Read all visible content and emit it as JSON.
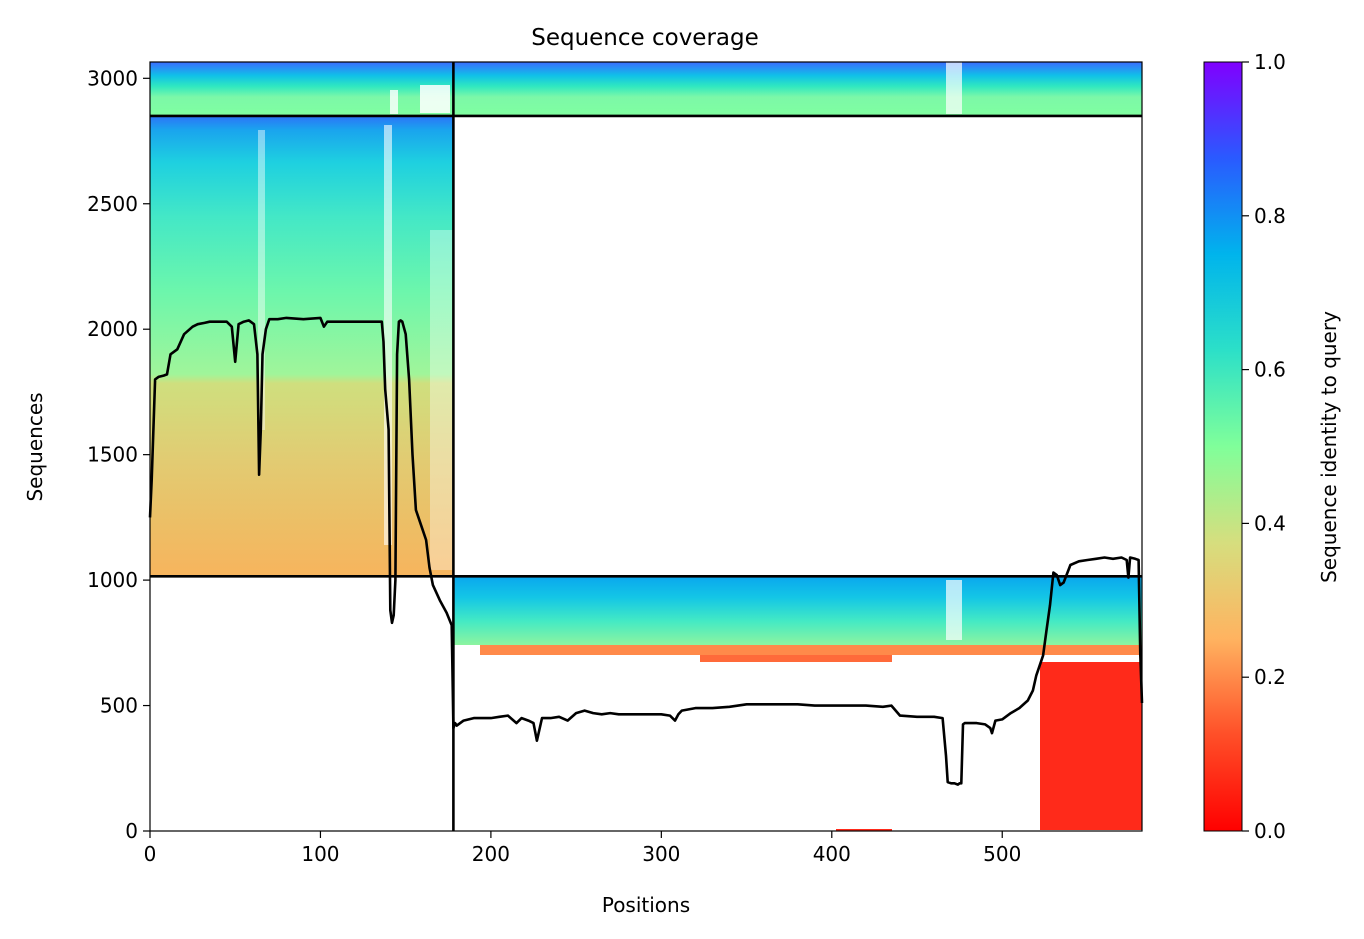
{
  "chart_data": {
    "type": "heatmap",
    "title": "Sequence coverage",
    "xlabel": "Positions",
    "ylabel": "Sequences",
    "xlim": [
      0,
      582
    ],
    "ylim": [
      0,
      3065
    ],
    "xticks": [
      0,
      100,
      200,
      300,
      400,
      500
    ],
    "yticks": [
      0,
      500,
      1000,
      1500,
      2000,
      2500,
      3000
    ],
    "grid": false,
    "colormap": "rainbow_r",
    "colorbar": {
      "label": "Sequence identity to query",
      "range": [
        0.0,
        1.0
      ],
      "ticks": [
        "0.0",
        "0.2",
        "0.4",
        "0.6",
        "0.8",
        "1.0"
      ]
    },
    "segment_boundaries": {
      "vertical_x": [
        178
      ],
      "horizontal_y": [
        1015,
        2850
      ]
    },
    "blocks": [
      {
        "name": "top-band",
        "x_range": [
          0,
          582
        ],
        "seq_range": [
          2850,
          3065
        ],
        "identity_range": [
          0.42,
          0.85
        ]
      },
      {
        "name": "upper-left",
        "x_range": [
          0,
          178
        ],
        "seq_range": [
          1015,
          2850
        ],
        "identity_range": [
          0.22,
          0.85
        ]
      },
      {
        "name": "lower-right",
        "x_range": [
          178,
          582
        ],
        "seq_range": [
          0,
          1015
        ],
        "identity_range": [
          0.05,
          0.78
        ]
      }
    ],
    "coverage_line": {
      "x": [
        0,
        1,
        3,
        5,
        8,
        10,
        12,
        14,
        16,
        20,
        25,
        28,
        32,
        35,
        40,
        45,
        48,
        50,
        52,
        55,
        58,
        61,
        63,
        64,
        65,
        66,
        68,
        70,
        75,
        80,
        90,
        100,
        102,
        104,
        106,
        110,
        120,
        130,
        136,
        137,
        138,
        140,
        141,
        142,
        143,
        144,
        145,
        146,
        147,
        148,
        150,
        152,
        154,
        156,
        158,
        160,
        162,
        164,
        166,
        170,
        174,
        177,
        178,
        179,
        180,
        184,
        190,
        200,
        205,
        210,
        215,
        218,
        222,
        225,
        227,
        230,
        235,
        240,
        245,
        250,
        255,
        260,
        265,
        270,
        275,
        280,
        290,
        300,
        305,
        308,
        310,
        312,
        320,
        330,
        340,
        350,
        360,
        370,
        380,
        390,
        400,
        410,
        420,
        430,
        435,
        440,
        450,
        460,
        465,
        467,
        468,
        470,
        472,
        474,
        475,
        476,
        477,
        478,
        480,
        485,
        490,
        493,
        494,
        496,
        500,
        505,
        510,
        515,
        518,
        520,
        522,
        524,
        526,
        528,
        530,
        532,
        534,
        536,
        540,
        545,
        550,
        555,
        560,
        565,
        570,
        573,
        574,
        575,
        578,
        580,
        581,
        582
      ],
      "y": [
        1250,
        1400,
        1800,
        1810,
        1815,
        1820,
        1900,
        1910,
        1920,
        1980,
        2010,
        2020,
        2025,
        2030,
        2030,
        2030,
        2010,
        1870,
        2020,
        2030,
        2035,
        2020,
        1900,
        1420,
        1600,
        1900,
        2000,
        2040,
        2040,
        2045,
        2040,
        2045,
        2010,
        2030,
        2030,
        2030,
        2030,
        2030,
        2030,
        1950,
        1760,
        1600,
        880,
        830,
        860,
        1000,
        1900,
        2030,
        2035,
        2030,
        1980,
        1800,
        1500,
        1280,
        1240,
        1200,
        1160,
        1050,
        980,
        920,
        870,
        820,
        410,
        430,
        420,
        440,
        450,
        450,
        455,
        460,
        430,
        450,
        440,
        430,
        360,
        450,
        450,
        455,
        440,
        470,
        480,
        470,
        465,
        470,
        465,
        465,
        465,
        465,
        460,
        440,
        465,
        480,
        490,
        490,
        495,
        505,
        505,
        505,
        505,
        500,
        500,
        500,
        500,
        495,
        500,
        460,
        455,
        455,
        450,
        300,
        195,
        190,
        190,
        185,
        190,
        190,
        425,
        430,
        430,
        430,
        425,
        410,
        390,
        440,
        445,
        470,
        490,
        520,
        560,
        620,
        660,
        700,
        800,
        900,
        1030,
        1020,
        980,
        990,
        1060,
        1075,
        1080,
        1085,
        1090,
        1085,
        1090,
        1080,
        1010,
        1090,
        1085,
        1080,
        700,
        510
      ]
    }
  }
}
